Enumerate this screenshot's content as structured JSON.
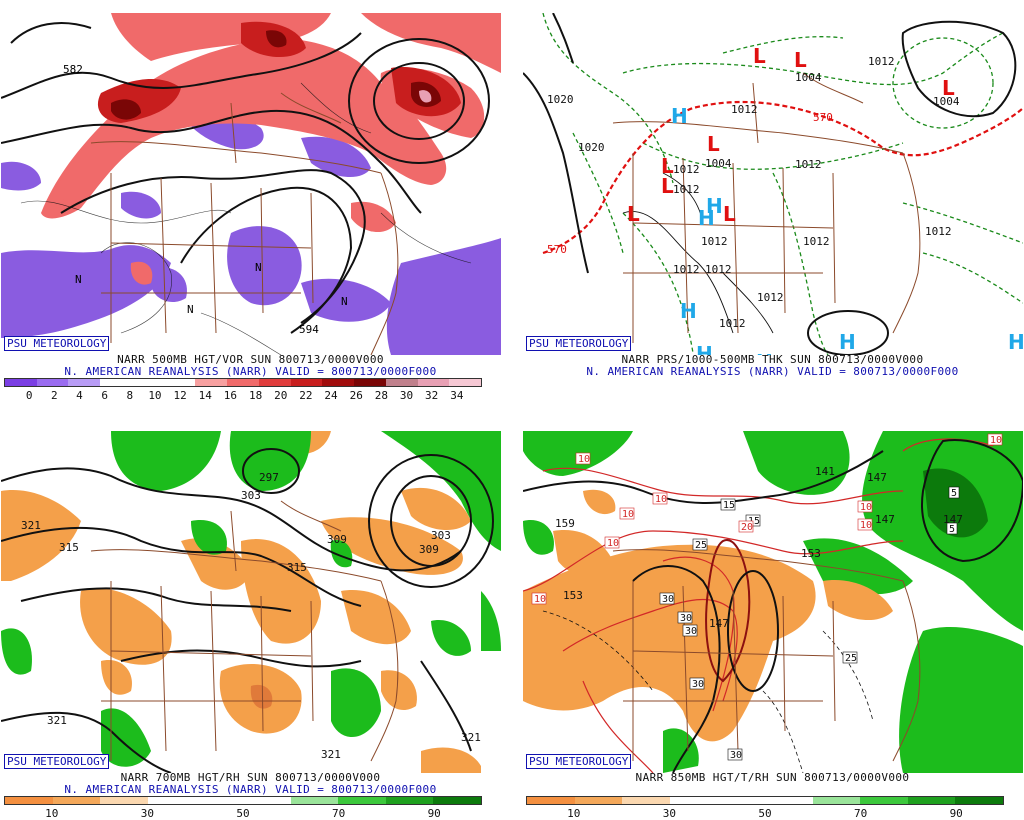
{
  "branding": "PSU METEOROLOGY",
  "colors": {
    "vorticity_purple": "#8a5ce0",
    "vorticity_red": "#f06a6a",
    "vorticity_darkred": "#8c1010",
    "rh_green": "#1cbc1c",
    "rh_orange": "#f4a04a",
    "contour_black": "#111111",
    "border_brown": "#8b4a2b",
    "high_label_cyan": "#20a8e8",
    "low_label_red": "#e01010",
    "caption_blue": "#1010b0"
  },
  "panels": [
    {
      "id": "500mb",
      "title_line1": "NARR 500MB HGT/VOR SUN 800713/0000V000",
      "title_line2": "N. AMERICAN REANALYSIS (NARR) VALID = 800713/0000F000",
      "contour_labels": [
        "582",
        "594",
        "N",
        "N",
        "N",
        "N"
      ],
      "colorbar": {
        "colors": [
          "#7b3fe4",
          "#9a6cf0",
          "#b89cf5",
          "#ffffff",
          "#ffffff",
          "#ffffff",
          "#f7a0a0",
          "#f06a6a",
          "#e03c3c",
          "#c81e1e",
          "#a00c0c",
          "#7a0606",
          "#c0808c",
          "#e8a0b4",
          "#f6c8d4"
        ],
        "ticks": [
          "0",
          "2",
          "4",
          "6",
          "8",
          "10",
          "12",
          "14",
          "16",
          "18",
          "20",
          "22",
          "24",
          "26",
          "28",
          "30",
          "32",
          "34"
        ]
      }
    },
    {
      "id": "pres_thickness",
      "title_line1": "NARR PRS/1000-500MB THK SUN 800713/0000V000",
      "title_line2": "N. AMERICAN REANALYSIS (NARR) VALID = 800713/0000F000",
      "contour_labels": [
        "1020",
        "1020",
        "1012",
        "1004",
        "1012",
        "1012",
        "1004",
        "1012",
        "1012",
        "1012",
        "1012",
        "1012",
        "1012",
        "1012",
        "1004",
        "1012",
        "1012",
        "570",
        "570"
      ],
      "highs": [
        "H",
        "H",
        "H",
        "H",
        "H",
        "H",
        "H",
        "H"
      ],
      "lows": [
        "L",
        "L",
        "L",
        "L",
        "L",
        "L",
        "L",
        "L"
      ]
    },
    {
      "id": "700mb",
      "title_line1": "NARR 700MB HGT/RH SUN 800713/0000V000",
      "title_line2": "N. AMERICAN REANALYSIS (NARR) VALID = 800713/0000F000",
      "contour_labels": [
        "321",
        "315",
        "297",
        "303",
        "309",
        "315",
        "309",
        "303",
        "321",
        "321",
        "321"
      ],
      "colorbar": {
        "colors": [
          "#f49040",
          "#f4a85a",
          "#fbd8b0",
          "#ffffff",
          "#ffffff",
          "#ffffff",
          "#9ae49a",
          "#3cc83c",
          "#1ea01e",
          "#0c7a0c"
        ],
        "ticks": [
          "10",
          "30",
          "50",
          "70",
          "90"
        ]
      }
    },
    {
      "id": "850mb",
      "title_line1": "NARR 850MB HGT/T/RH SUN 800713/0000V000",
      "title_line2": "N. AMERICAN REANALYSIS (NARR) VALID = 800713/0000F000",
      "contour_labels": [
        "159",
        "153",
        "147",
        "147",
        "153",
        "147",
        "141",
        "147",
        "10",
        "10",
        "10",
        "10",
        "10",
        "10",
        "10",
        "10",
        "15",
        "15",
        "20",
        "25",
        "25",
        "30",
        "30",
        "30",
        "30",
        "30",
        "5",
        "5"
      ],
      "colorbar": {
        "colors": [
          "#f49040",
          "#f4a85a",
          "#fbd8b0",
          "#ffffff",
          "#ffffff",
          "#ffffff",
          "#9ae49a",
          "#3cc83c",
          "#1ea01e",
          "#0c7a0c"
        ],
        "ticks": [
          "10",
          "30",
          "50",
          "70",
          "90"
        ]
      }
    }
  ]
}
